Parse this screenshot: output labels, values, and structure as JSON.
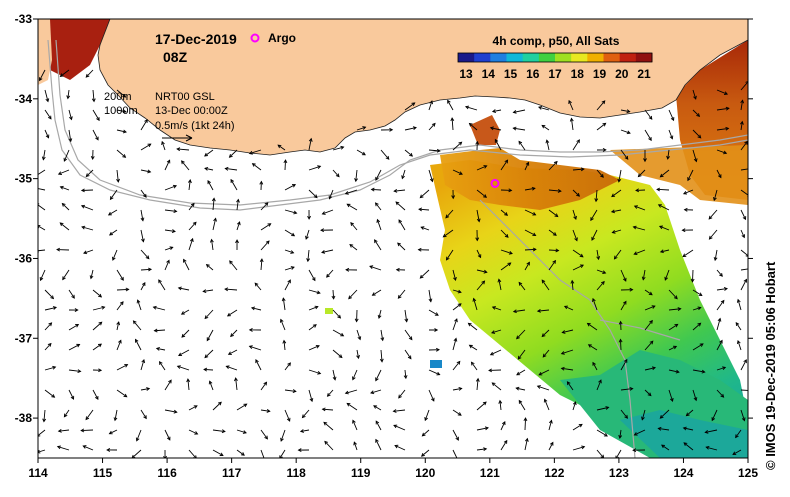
{
  "header": {
    "date": "17-Dec-2019",
    "time": "08Z",
    "argo_label": "Argo"
  },
  "legend": {
    "title": "4h comp, p50, All Sats",
    "ticks": [
      "13",
      "14",
      "15",
      "16",
      "17",
      "18",
      "19",
      "20",
      "21"
    ],
    "colors": [
      "#1a1a8a",
      "#1f3fd0",
      "#1f7fe0",
      "#10b8d8",
      "#20d0a0",
      "#40d040",
      "#a0e020",
      "#e8e820",
      "#f0b000",
      "#e06010",
      "#c02010",
      "#901010"
    ]
  },
  "annotations": {
    "isobath_200": "200m",
    "isobath_1000": "1000m",
    "source": "NRT00 GSL",
    "source_date": "13-Dec 00:00Z",
    "scale": "0.5m/s (1kt 24h)"
  },
  "credit": "© IMOS 19-Dec-2019 05:06 Hobart",
  "argo_float": {
    "lon": 121.08,
    "lat": -35.06
  },
  "axes": {
    "x_ticks": [
      "114",
      "115",
      "116",
      "117",
      "118",
      "119",
      "120",
      "121",
      "122",
      "123",
      "124",
      "125"
    ],
    "y_ticks": [
      "-33",
      "-34",
      "-35",
      "-36",
      "-37",
      "-38"
    ],
    "lon_range": [
      114,
      125
    ],
    "lat_range": [
      -38.5,
      -33
    ]
  },
  "colors": {
    "land": "#f9c99c",
    "isobath": "#a8a8a8",
    "argo": "#ff00ff"
  }
}
